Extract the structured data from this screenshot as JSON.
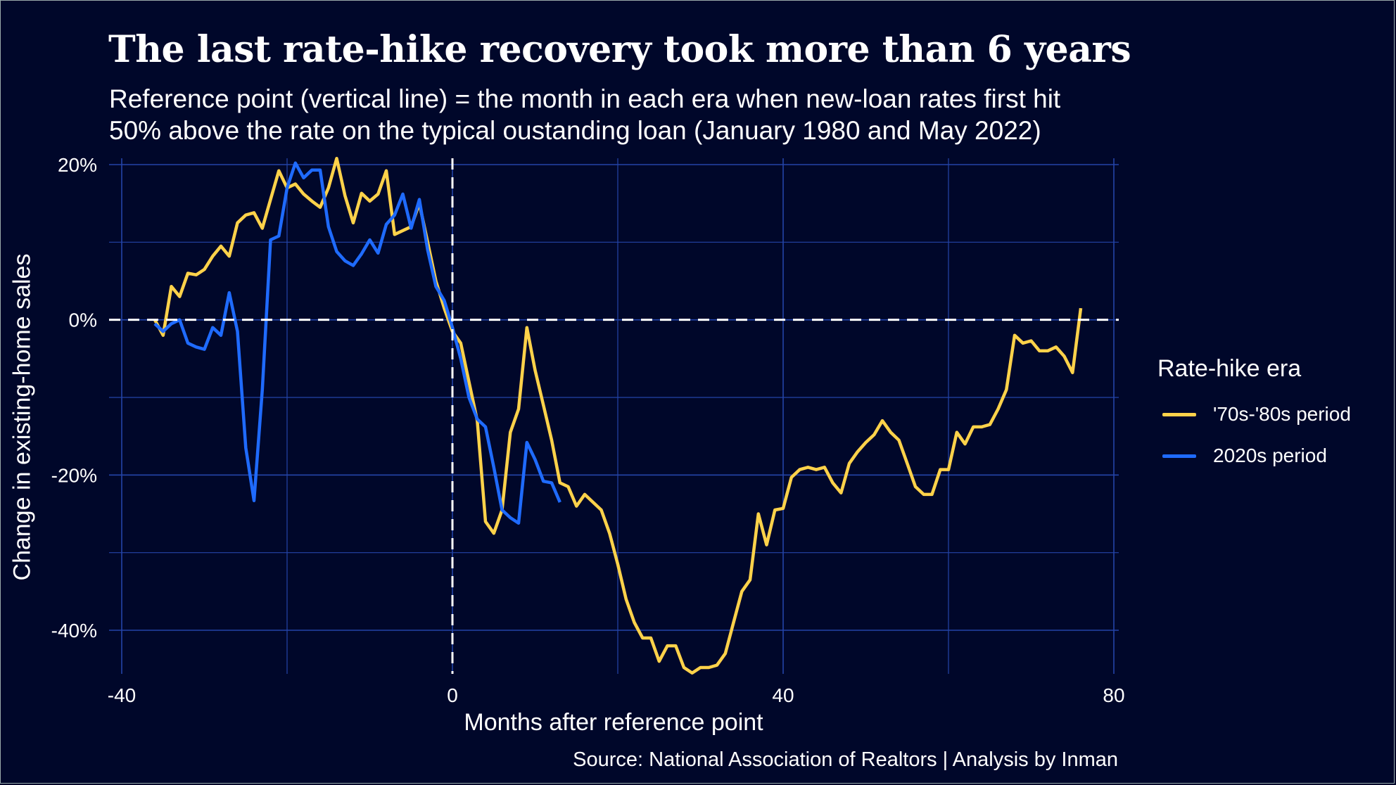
{
  "chart_data": {
    "type": "line",
    "title": "The last rate-hike recovery took more than 6 years",
    "subtitle": [
      "Reference point (vertical line) = the month in each era when new-loan rates first hit",
      "50% above the rate on the typical oustanding loan (January 1980 and May 2022)"
    ],
    "xlabel": "Months after reference point",
    "ylabel": "Change in existing-home sales",
    "source": "Source: National Association of Realtors | Analysis by Inman",
    "xlim": [
      -40,
      80
    ],
    "ylim": [
      -40,
      20
    ],
    "xticks": [
      -40,
      0,
      40,
      80
    ],
    "xtick_labels": [
      "-40",
      "0",
      "40",
      "80"
    ],
    "yticks": [
      20,
      0,
      -20,
      -40
    ],
    "ytick_labels": [
      "20%",
      "0%",
      "-20%",
      "-40%"
    ],
    "grid": true,
    "reference_lines": {
      "x": 0,
      "y": 0
    },
    "legend": {
      "title": "Rate-hike era",
      "placement": "right"
    },
    "colors": {
      "background": "#00072a",
      "grid": "#2444a8",
      "series_1": "#ffd24a",
      "series_2": "#1f6bff"
    },
    "series": [
      {
        "name": "'70s-'80s period",
        "x_start": -36,
        "values": [
          0,
          -2,
          4.3,
          3,
          6,
          5.8,
          6.5,
          8.2,
          9.5,
          8.2,
          12.5,
          13.5,
          13.8,
          11.8,
          15.5,
          19.2,
          17,
          17.5,
          16.2,
          15.3,
          14.5,
          17,
          20.8,
          16,
          12.5,
          16.3,
          15.3,
          16.2,
          19.2,
          11,
          11.5,
          12,
          15,
          10,
          5,
          1.5,
          -1.5,
          -3,
          -8,
          -13,
          -26,
          -27.5,
          -24.5,
          -14.5,
          -11.5,
          -1,
          -6.5,
          -11,
          -15.5,
          -21,
          -21.5,
          -24,
          -22.5,
          -23.5,
          -24.5,
          -27.5,
          -31.5,
          -36,
          -39,
          -41,
          -41,
          -44,
          -42,
          -42,
          -44.8,
          -45.5,
          -44.8,
          -44.8,
          -44.5,
          -43,
          -39,
          -35,
          -33.5,
          -25,
          -29,
          -24.5,
          -24.3,
          -20.3,
          -19.3,
          -19,
          -19.3,
          -19,
          -21,
          -22.3,
          -18.5,
          -17,
          -15.8,
          -14.8,
          -13,
          -14.5,
          -15.5,
          -18.5,
          -21.5,
          -22.5,
          -22.5,
          -19.3,
          -19.3,
          -14.5,
          -16,
          -13.8,
          -13.8,
          -13.5,
          -11.5,
          -9,
          -2,
          -3,
          -2.7,
          -4,
          -4,
          -3.5,
          -4.7,
          -6.8,
          1.5
        ]
      },
      {
        "name": "2020s period",
        "x_start": -36,
        "values": [
          -0.5,
          -1.5,
          -0.5,
          0,
          -3,
          -3.5,
          -3.8,
          -1,
          -2,
          3.5,
          -1.5,
          -16.5,
          -23.3,
          -9,
          10.3,
          10.8,
          17,
          20.2,
          18.3,
          19.3,
          19.3,
          12,
          8.8,
          7.6,
          7,
          8.5,
          10.3,
          8.6,
          12.3,
          13.5,
          16.2,
          11.8,
          15.5,
          9,
          4.3,
          2.5,
          -1,
          -5,
          -10,
          -12.8,
          -13.8,
          -19,
          -24.5,
          -25.5,
          -26.2,
          -15.8,
          -18,
          -20.8,
          -21,
          -23.5
        ]
      }
    ]
  }
}
